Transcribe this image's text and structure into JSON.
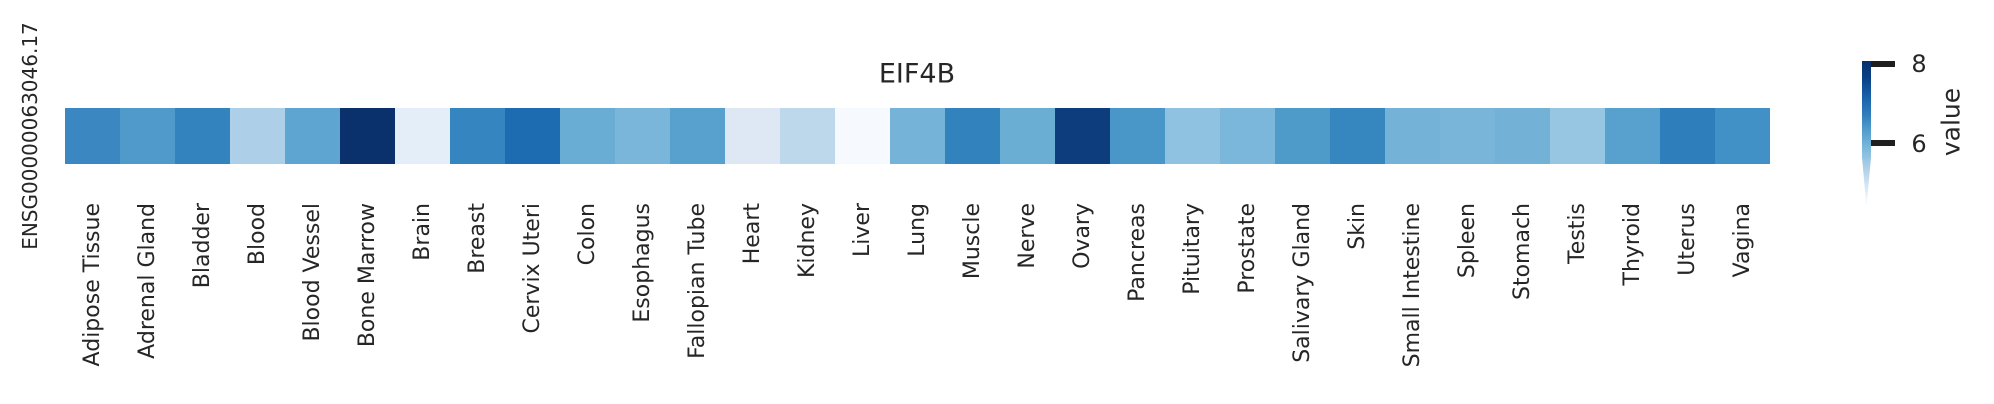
{
  "figure": {
    "title": "EIF4B",
    "row_label": "ENSG00000063046.17",
    "colorbar": {
      "label": "value",
      "tick_top": "8",
      "tick_bottom": "6",
      "top_color": "#08306b",
      "bottom_color": "#f7fbff"
    }
  },
  "chart_data": {
    "type": "heatmap",
    "title": "EIF4B",
    "rows": [
      "ENSG00000063046.17"
    ],
    "categories": [
      "Adipose Tissue",
      "Adrenal Gland",
      "Bladder",
      "Blood",
      "Blood Vessel",
      "Bone Marrow",
      "Brain",
      "Breast",
      "Cervix Uteri",
      "Colon",
      "Esophagus",
      "Fallopian Tube",
      "Heart",
      "Kidney",
      "Liver",
      "Lung",
      "Muscle",
      "Nerve",
      "Ovary",
      "Pancreas",
      "Pituitary",
      "Prostate",
      "Salivary Gland",
      "Skin",
      "Small Intestine",
      "Spleen",
      "Stomach",
      "Testis",
      "Thyroid",
      "Uterus",
      "Vagina"
    ],
    "values": [
      [
        6.8,
        6.6,
        6.9,
        5.5,
        6.4,
        8.0,
        4.8,
        6.9,
        7.2,
        6.3,
        6.1,
        6.5,
        4.9,
        5.4,
        4.4,
        6.2,
        6.9,
        6.3,
        7.9,
        6.7,
        5.9,
        6.1,
        6.6,
        6.8,
        6.2,
        6.1,
        6.2,
        5.8,
        6.5,
        7.0,
        6.7
      ]
    ],
    "cell_colors": [
      "#3a87c1",
      "#4f9acb",
      "#3383bf",
      "#adcfe7",
      "#5fa5d1",
      "#0a316c",
      "#e4eef8",
      "#3585c0",
      "#1d6cb1",
      "#69acd4",
      "#7ab6da",
      "#58a1ce",
      "#dde8f4",
      "#bdd7eb",
      "#f6fafe",
      "#75b3d8",
      "#3282be",
      "#6baed4",
      "#0d3d7c",
      "#4997c9",
      "#8fc2e0",
      "#7bb7da",
      "#4e9ac9",
      "#3686c0",
      "#74b2d8",
      "#79b5d9",
      "#73b1d7",
      "#97c6e3",
      "#58a1ce",
      "#2e7ebc",
      "#4190c6"
    ],
    "colormap": "Blues",
    "colorbar_label": "value",
    "colorbar_ticks": [
      8,
      6
    ],
    "value_domain_estimate": [
      4.4,
      8.1
    ],
    "legend_position": "right",
    "grid": false
  }
}
